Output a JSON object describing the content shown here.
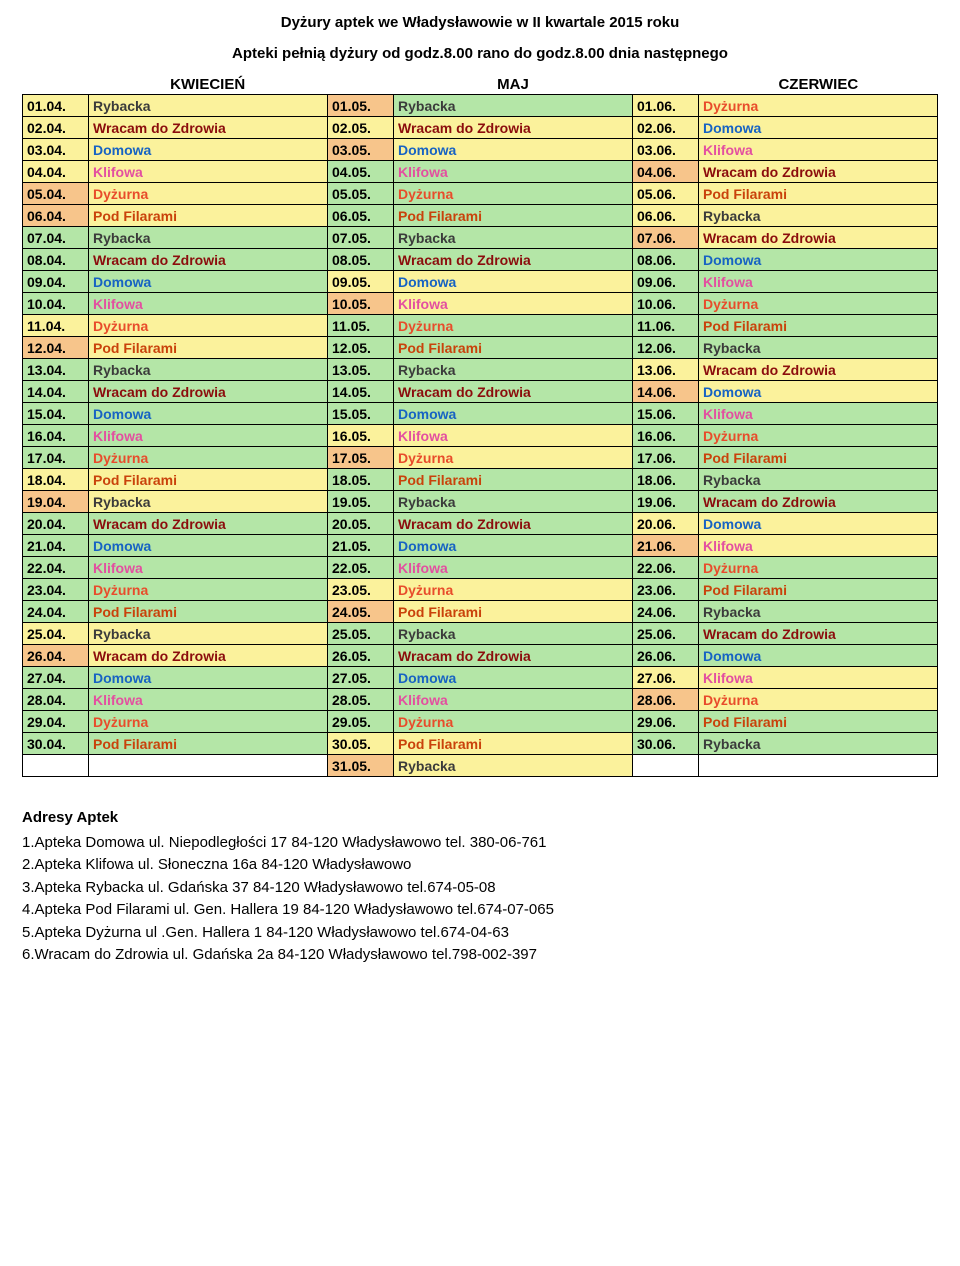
{
  "title": "Dyżury aptek we Władysławowie w II kwartale 2015 roku",
  "subtitle": "Apteki pełnią dyżury od godz.8.00 rano do godz.8.00 dnia następnego",
  "months": [
    "KWIECIEŃ",
    "MAJ",
    "CZERWIEC"
  ],
  "pharmacies": {
    "Rybacka": "#3b3b3b",
    "Dyżurna": "#e84c2b",
    "Wracam do Zdrowia": "#8b0d0d",
    "Domowa": "#1763c3",
    "Klifowa": "#e34fa0",
    "Pod Filarami": "#c9420b"
  },
  "colors": {
    "yellow": "#fbf29c",
    "green": "#b4e6a7",
    "orange": "#f7c58b",
    "white": "#ffffff"
  },
  "rows": [
    {
      "d1": "01.04.",
      "p1": "Rybacka",
      "b1d": "yellow",
      "b1p": "yellow",
      "d2": "01.05.",
      "p2": "Rybacka",
      "b2d": "orange",
      "b2p": "green",
      "d3": "01.06.",
      "p3": "Dyżurna",
      "b3d": "yellow",
      "b3p": "yellow"
    },
    {
      "d1": "02.04.",
      "p1": "Wracam do Zdrowia",
      "b1d": "yellow",
      "b1p": "yellow",
      "d2": "02.05.",
      "p2": "Wracam do Zdrowia",
      "b2d": "yellow",
      "b2p": "yellow",
      "d3": "02.06.",
      "p3": "Domowa",
      "b3d": "yellow",
      "b3p": "yellow"
    },
    {
      "d1": "03.04.",
      "p1": "Domowa",
      "b1d": "yellow",
      "b1p": "yellow",
      "d2": "03.05.",
      "p2": "Domowa",
      "b2d": "orange",
      "b2p": "yellow",
      "d3": "03.06.",
      "p3": "Klifowa",
      "b3d": "yellow",
      "b3p": "yellow"
    },
    {
      "d1": "04.04.",
      "p1": "Klifowa",
      "b1d": "yellow",
      "b1p": "yellow",
      "d2": "04.05.",
      "p2": "Klifowa",
      "b2d": "green",
      "b2p": "green",
      "d3": "04.06.",
      "p3": "Wracam do Zdrowia",
      "b3d": "orange",
      "b3p": "yellow"
    },
    {
      "d1": "05.04.",
      "p1": "Dyżurna",
      "b1d": "orange",
      "b1p": "yellow",
      "d2": "05.05.",
      "p2": "Dyżurna",
      "b2d": "green",
      "b2p": "green",
      "d3": "05.06.",
      "p3": "Pod Filarami",
      "b3d": "yellow",
      "b3p": "yellow"
    },
    {
      "d1": "06.04.",
      "p1": "Pod Filarami",
      "b1d": "orange",
      "b1p": "yellow",
      "d2": "06.05.",
      "p2": "Pod Filarami",
      "b2d": "green",
      "b2p": "green",
      "d3": "06.06.",
      "p3": "Rybacka",
      "b3d": "yellow",
      "b3p": "yellow"
    },
    {
      "d1": "07.04.",
      "p1": "Rybacka",
      "b1d": "green",
      "b1p": "green",
      "d2": "07.05.",
      "p2": "Rybacka",
      "b2d": "green",
      "b2p": "green",
      "d3": "07.06.",
      "p3": "Wracam do Zdrowia",
      "b3d": "orange",
      "b3p": "yellow"
    },
    {
      "d1": "08.04.",
      "p1": "Wracam do Zdrowia",
      "b1d": "green",
      "b1p": "green",
      "d2": "08.05.",
      "p2": "Wracam do Zdrowia",
      "b2d": "green",
      "b2p": "green",
      "d3": "08.06.",
      "p3": "Domowa",
      "b3d": "green",
      "b3p": "green"
    },
    {
      "d1": "09.04.",
      "p1": "Domowa",
      "b1d": "green",
      "b1p": "green",
      "d2": "09.05.",
      "p2": "Domowa",
      "b2d": "yellow",
      "b2p": "yellow",
      "d3": "09.06.",
      "p3": "Klifowa",
      "b3d": "green",
      "b3p": "green"
    },
    {
      "d1": "10.04.",
      "p1": "Klifowa",
      "b1d": "green",
      "b1p": "green",
      "d2": "10.05.",
      "p2": "Klifowa",
      "b2d": "orange",
      "b2p": "yellow",
      "d3": "10.06.",
      "p3": "Dyżurna",
      "b3d": "green",
      "b3p": "green"
    },
    {
      "d1": "11.04.",
      "p1": "Dyżurna",
      "b1d": "yellow",
      "b1p": "yellow",
      "d2": "11.05.",
      "p2": "Dyżurna",
      "b2d": "green",
      "b2p": "green",
      "d3": "11.06.",
      "p3": "Pod Filarami",
      "b3d": "green",
      "b3p": "green"
    },
    {
      "d1": "12.04.",
      "p1": "Pod Filarami",
      "b1d": "orange",
      "b1p": "yellow",
      "d2": "12.05.",
      "p2": "Pod Filarami",
      "b2d": "green",
      "b2p": "green",
      "d3": "12.06.",
      "p3": "Rybacka",
      "b3d": "green",
      "b3p": "green"
    },
    {
      "d1": "13.04.",
      "p1": "Rybacka",
      "b1d": "green",
      "b1p": "green",
      "d2": "13.05.",
      "p2": "Rybacka",
      "b2d": "green",
      "b2p": "green",
      "d3": "13.06.",
      "p3": "Wracam do Zdrowia",
      "b3d": "yellow",
      "b3p": "yellow"
    },
    {
      "d1": "14.04.",
      "p1": "Wracam do Zdrowia",
      "b1d": "green",
      "b1p": "green",
      "d2": "14.05.",
      "p2": "Wracam do Zdrowia",
      "b2d": "green",
      "b2p": "green",
      "d3": "14.06.",
      "p3": "Domowa",
      "b3d": "orange",
      "b3p": "yellow"
    },
    {
      "d1": "15.04.",
      "p1": "Domowa",
      "b1d": "green",
      "b1p": "green",
      "d2": "15.05.",
      "p2": "Domowa",
      "b2d": "green",
      "b2p": "green",
      "d3": "15.06.",
      "p3": "Klifowa",
      "b3d": "green",
      "b3p": "green"
    },
    {
      "d1": "16.04.",
      "p1": "Klifowa",
      "b1d": "green",
      "b1p": "green",
      "d2": "16.05.",
      "p2": "Klifowa",
      "b2d": "yellow",
      "b2p": "yellow",
      "d3": "16.06.",
      "p3": "Dyżurna",
      "b3d": "green",
      "b3p": "green"
    },
    {
      "d1": "17.04.",
      "p1": "Dyżurna",
      "b1d": "green",
      "b1p": "green",
      "d2": "17.05.",
      "p2": "Dyżurna",
      "b2d": "orange",
      "b2p": "yellow",
      "d3": "17.06.",
      "p3": "Pod Filarami",
      "b3d": "green",
      "b3p": "green"
    },
    {
      "d1": "18.04.",
      "p1": "Pod Filarami",
      "b1d": "yellow",
      "b1p": "yellow",
      "d2": "18.05.",
      "p2": "Pod Filarami",
      "b2d": "green",
      "b2p": "green",
      "d3": "18.06.",
      "p3": "Rybacka",
      "b3d": "green",
      "b3p": "green"
    },
    {
      "d1": "19.04.",
      "p1": "Rybacka",
      "b1d": "orange",
      "b1p": "yellow",
      "d2": "19.05.",
      "p2": "Rybacka",
      "b2d": "green",
      "b2p": "green",
      "d3": "19.06.",
      "p3": "Wracam do Zdrowia",
      "b3d": "green",
      "b3p": "green"
    },
    {
      "d1": "20.04.",
      "p1": "Wracam do Zdrowia",
      "b1d": "green",
      "b1p": "green",
      "d2": "20.05.",
      "p2": "Wracam do Zdrowia",
      "b2d": "green",
      "b2p": "green",
      "d3": "20.06.",
      "p3": "Domowa",
      "b3d": "yellow",
      "b3p": "yellow"
    },
    {
      "d1": "21.04.",
      "p1": "Domowa",
      "b1d": "green",
      "b1p": "green",
      "d2": "21.05.",
      "p2": "Domowa",
      "b2d": "green",
      "b2p": "green",
      "d3": "21.06.",
      "p3": "Klifowa",
      "b3d": "orange",
      "b3p": "yellow"
    },
    {
      "d1": "22.04.",
      "p1": "Klifowa",
      "b1d": "green",
      "b1p": "green",
      "d2": "22.05.",
      "p2": "Klifowa",
      "b2d": "green",
      "b2p": "green",
      "d3": "22.06.",
      "p3": "Dyżurna",
      "b3d": "green",
      "b3p": "green"
    },
    {
      "d1": "23.04.",
      "p1": "Dyżurna",
      "b1d": "green",
      "b1p": "green",
      "d2": "23.05.",
      "p2": "Dyżurna",
      "b2d": "yellow",
      "b2p": "yellow",
      "d3": "23.06.",
      "p3": "Pod Filarami",
      "b3d": "green",
      "b3p": "green"
    },
    {
      "d1": "24.04.",
      "p1": "Pod Filarami",
      "b1d": "green",
      "b1p": "green",
      "d2": "24.05.",
      "p2": "Pod Filarami",
      "b2d": "orange",
      "b2p": "yellow",
      "d3": "24.06.",
      "p3": "Rybacka",
      "b3d": "green",
      "b3p": "green"
    },
    {
      "d1": "25.04.",
      "p1": "Rybacka",
      "b1d": "yellow",
      "b1p": "yellow",
      "d2": "25.05.",
      "p2": "Rybacka",
      "b2d": "green",
      "b2p": "green",
      "d3": "25.06.",
      "p3": "Wracam do Zdrowia",
      "b3d": "green",
      "b3p": "green"
    },
    {
      "d1": "26.04.",
      "p1": "Wracam do Zdrowia",
      "b1d": "orange",
      "b1p": "yellow",
      "d2": "26.05.",
      "p2": "Wracam do Zdrowia",
      "b2d": "green",
      "b2p": "green",
      "d3": "26.06.",
      "p3": "Domowa",
      "b3d": "green",
      "b3p": "green"
    },
    {
      "d1": "27.04.",
      "p1": "Domowa",
      "b1d": "green",
      "b1p": "green",
      "d2": "27.05.",
      "p2": "Domowa",
      "b2d": "green",
      "b2p": "green",
      "d3": "27.06.",
      "p3": "Klifowa",
      "b3d": "yellow",
      "b3p": "yellow"
    },
    {
      "d1": "28.04.",
      "p1": "Klifowa",
      "b1d": "green",
      "b1p": "green",
      "d2": "28.05.",
      "p2": "Klifowa",
      "b2d": "green",
      "b2p": "green",
      "d3": "28.06.",
      "p3": "Dyżurna",
      "b3d": "orange",
      "b3p": "yellow"
    },
    {
      "d1": "29.04.",
      "p1": "Dyżurna",
      "b1d": "green",
      "b1p": "green",
      "d2": "29.05.",
      "p2": "Dyżurna",
      "b2d": "green",
      "b2p": "green",
      "d3": "29.06.",
      "p3": "Pod Filarami",
      "b3d": "green",
      "b3p": "green"
    },
    {
      "d1": "30.04.",
      "p1": "Pod Filarami",
      "b1d": "green",
      "b1p": "green",
      "d2": "30.05.",
      "p2": "Pod Filarami",
      "b2d": "yellow",
      "b2p": "yellow",
      "d3": "30.06.",
      "p3": "Rybacka",
      "b3d": "green",
      "b3p": "green"
    },
    {
      "d1": "",
      "p1": "",
      "b1d": "white",
      "b1p": "white",
      "d2": "31.05.",
      "p2": "Rybacka",
      "b2d": "orange",
      "b2p": "yellow",
      "d3": "",
      "p3": "",
      "b3d": "white",
      "b3p": "white"
    }
  ],
  "footer": {
    "heading": "Adresy Aptek",
    "lines": [
      "1.Apteka Domowa ul. Niepodległości 17 84-120 Władysławowo tel. 380-06-761",
      "2.Apteka Klifowa ul. Słoneczna 16a  84-120 Władysławowo",
      "3.Apteka Rybacka ul. Gdańska 37 84-120 Władysławowo tel.674-05-08",
      "4.Apteka Pod Filarami ul. Gen. Hallera 19  84-120 Władysławowo tel.674-07-065",
      "5.Apteka Dyżurna ul .Gen. Hallera 1 84-120 Władysławowo tel.674-04-63",
      "6.Wracam do Zdrowia  ul. Gdańska 2a 84-120 Władysławowo tel.798-002-397"
    ]
  }
}
